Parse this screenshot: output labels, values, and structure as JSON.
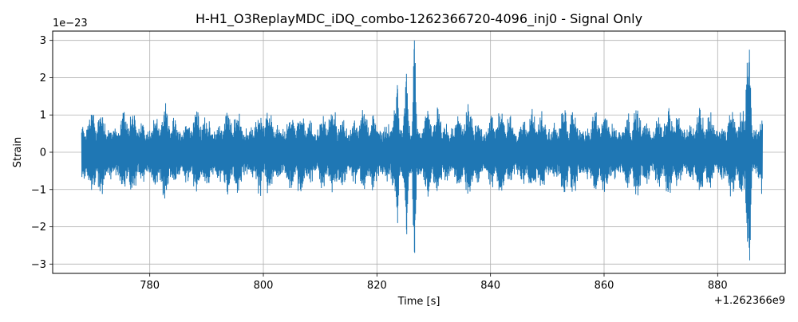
{
  "chart_data": {
    "type": "line",
    "title": "H-H1_O3ReplayMDC_iDQ_combo-1262366720-4096_inj0 - Signal Only",
    "xlabel": "Time [s]",
    "ylabel": "Strain",
    "x_offset_label": "+1.262366e9",
    "y_multiplier_label": "1e−23",
    "xlim": [
      762.9,
      891.9
    ],
    "ylim": [
      -3.25,
      3.25
    ],
    "x_ticks": [
      780,
      800,
      820,
      840,
      860,
      880
    ],
    "x_tick_labels": [
      "780",
      "800",
      "820",
      "840",
      "860",
      "880"
    ],
    "y_ticks": [
      -3,
      -2,
      -1,
      0,
      1,
      2,
      3
    ],
    "y_tick_labels": [
      "−3",
      "−2",
      "−1",
      "0",
      "1",
      "2",
      "3"
    ],
    "grid": true,
    "color": "#1f77b4",
    "series": [
      {
        "x_range": [
          768.0,
          887.9
        ],
        "peaks": [
          {
            "x": 826.6,
            "max": 3.0,
            "min": -2.7
          },
          {
            "x": 825.2,
            "max": 2.1,
            "min": -2.2
          },
          {
            "x": 823.6,
            "max": 1.8,
            "min": -1.9
          },
          {
            "x": 885.6,
            "max": 2.75,
            "min": -2.9
          },
          {
            "x": 885.2,
            "max": 2.4,
            "min": -2.4
          },
          {
            "x": 887.5,
            "max": 0.75,
            "min": -0.6
          }
        ],
        "typical_envelope": [
          -1.1,
          1.1
        ]
      }
    ]
  }
}
